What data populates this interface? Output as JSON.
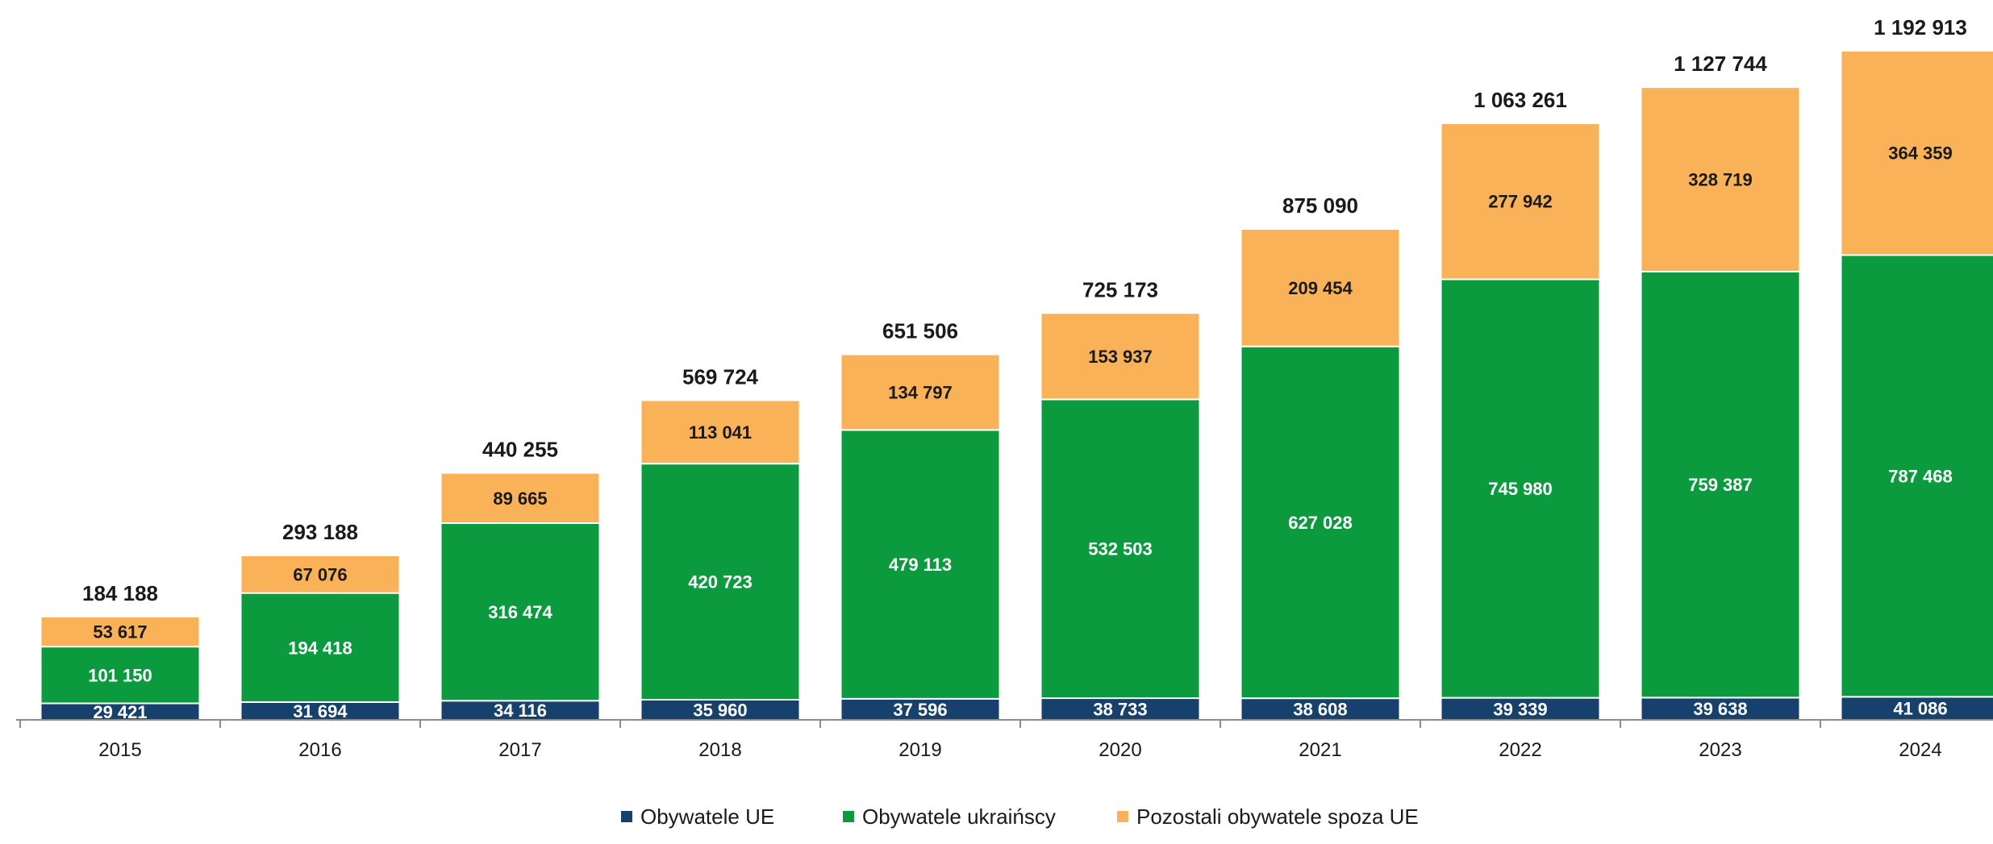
{
  "chart_data": {
    "type": "bar",
    "stacked": true,
    "categories": [
      "2015",
      "2016",
      "2017",
      "2018",
      "2019",
      "2020",
      "2021",
      "2022",
      "2023",
      "2024"
    ],
    "series": [
      {
        "name": "Obywatele UE",
        "color": "#17416d",
        "values": [
          29421,
          31694,
          34116,
          35960,
          37596,
          38733,
          38608,
          39339,
          39638,
          41086
        ],
        "labels": [
          "29 421",
          "31 694",
          "34 116",
          "35 960",
          "37 596",
          "38 733",
          "38 608",
          "39 339",
          "39 638",
          "41 086"
        ]
      },
      {
        "name": "Obywatele ukraińscy",
        "color": "#0c9a3e",
        "values": [
          101150,
          194418,
          316474,
          420723,
          479113,
          532503,
          627028,
          745980,
          759387,
          787468
        ],
        "labels": [
          "101 150",
          "194 418",
          "316 474",
          "420 723",
          "479 113",
          "532 503",
          "627 028",
          "745 980",
          "759 387",
          "787 468"
        ]
      },
      {
        "name": "Pozostali obywatele spoza UE",
        "color": "#f9b257",
        "values": [
          53617,
          67076,
          89665,
          113041,
          134797,
          153937,
          209454,
          277942,
          328719,
          364359
        ],
        "labels": [
          "53 617",
          "67 076",
          "89 665",
          "113 041",
          "134 797",
          "153 937",
          "209 454",
          "277 942",
          "328 719",
          "364 359"
        ]
      }
    ],
    "totals": [
      184188,
      293188,
      440255,
      569724,
      651506,
      725173,
      875090,
      1063261,
      1127744,
      1192913
    ],
    "total_labels": [
      "184 188",
      "293 188",
      "440 255",
      "569 724",
      "651 506",
      "725 173",
      "875 090",
      "1 063 261",
      "1 127 744",
      "1 192 913"
    ],
    "ylim": [
      0,
      1240000
    ],
    "grid": false,
    "legend_position": "bottom"
  }
}
